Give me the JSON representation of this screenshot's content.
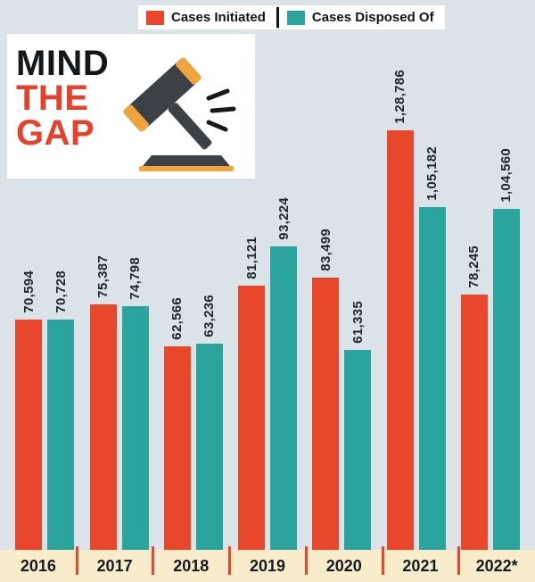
{
  "legend": {
    "items": [
      {
        "label": "Cases Initiated",
        "color": "#e8472b"
      },
      {
        "label": "Cases Disposed Of",
        "color": "#2aa49c"
      }
    ]
  },
  "title": {
    "line1": "MIND",
    "line2": "THE",
    "line3": "GAP"
  },
  "chart_data": {
    "type": "bar",
    "title": "MIND THE GAP",
    "categories": [
      "2016",
      "2017",
      "2018",
      "2019",
      "2020",
      "2021",
      "2022*"
    ],
    "series": [
      {
        "name": "Cases Initiated",
        "color": "#e8472b",
        "values": [
          70594,
          75387,
          62566,
          81121,
          83499,
          128786,
          78245
        ],
        "labels": [
          "70,594",
          "75,387",
          "62,566",
          "81,121",
          "83,499",
          "1,28,786",
          "78,245"
        ]
      },
      {
        "name": "Cases Disposed Of",
        "color": "#2aa49c",
        "values": [
          70728,
          74798,
          63236,
          93224,
          61335,
          105182,
          104560
        ],
        "labels": [
          "70,728",
          "74,798",
          "63,236",
          "93,224",
          "61,335",
          "1,05,182",
          "1,04,560"
        ]
      }
    ],
    "ylim": [
      0,
      128786
    ],
    "grid": false,
    "legend_position": "top",
    "xlabel": "",
    "ylabel": ""
  },
  "colors": {
    "background": "#dce3e8",
    "year_strip": "#f8ecca",
    "divider_red": "#e8472b",
    "label_text": "#20262e"
  }
}
